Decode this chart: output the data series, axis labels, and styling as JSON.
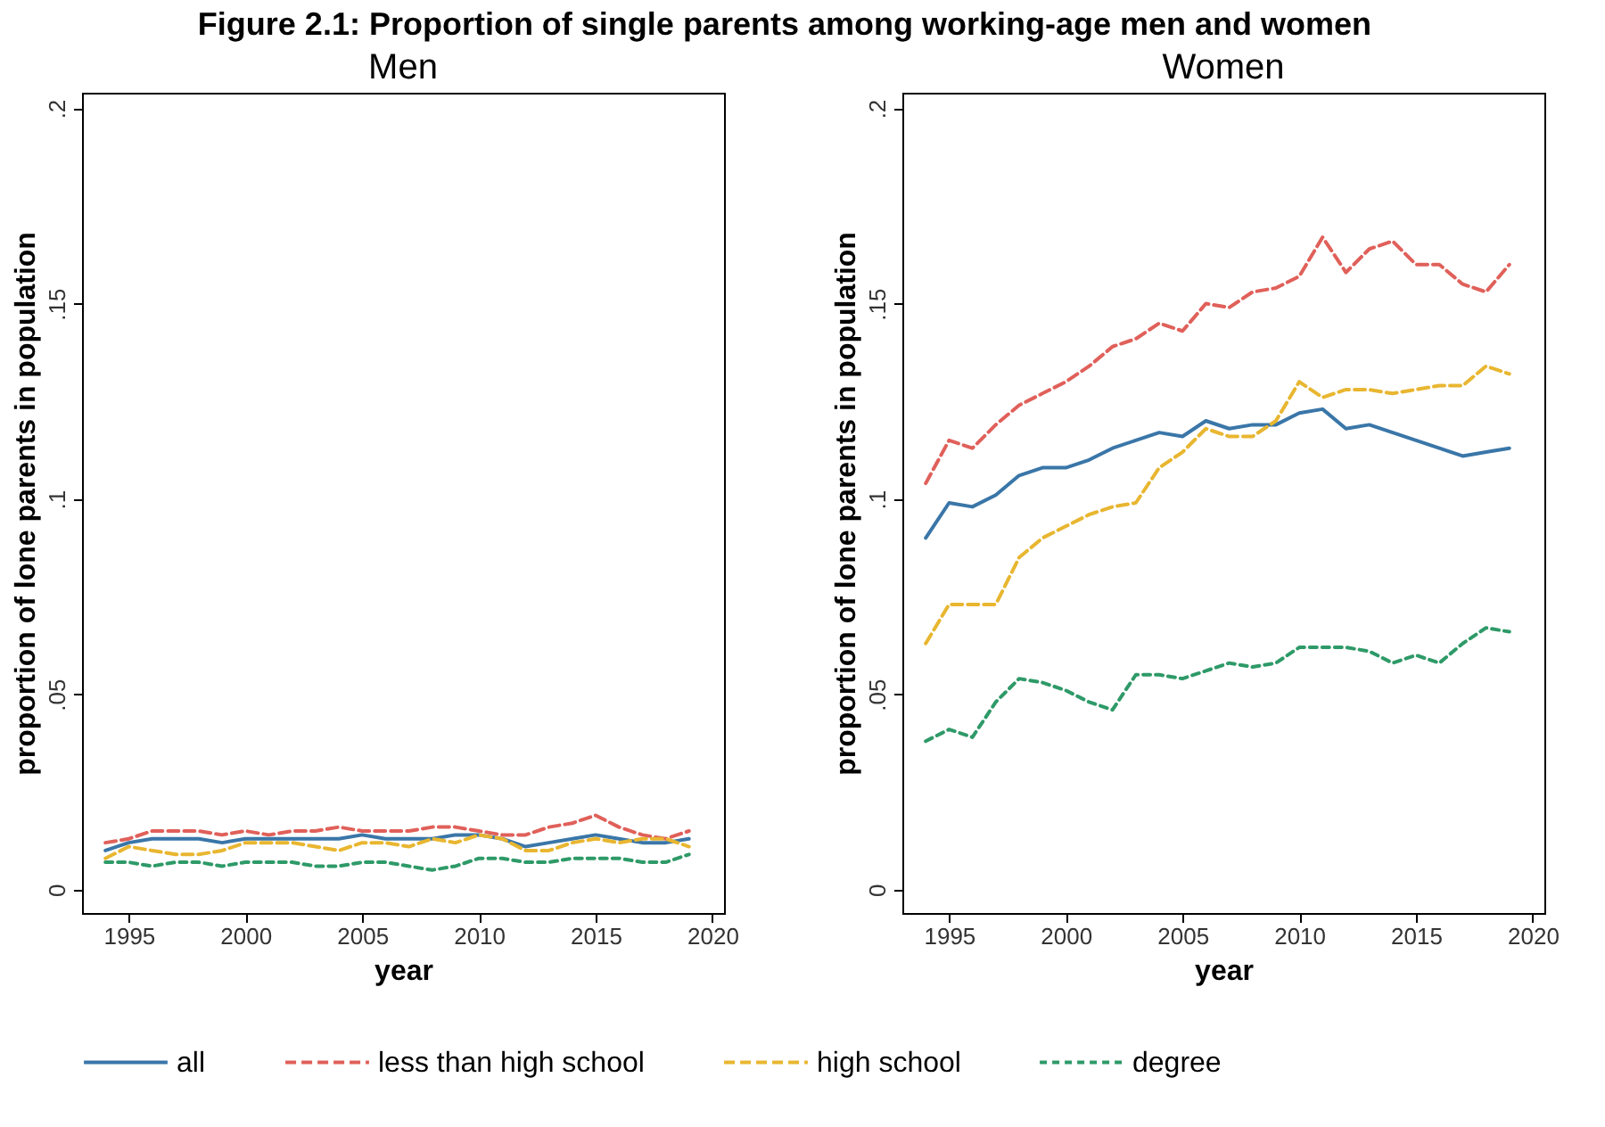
{
  "chart_data": [
    {
      "type": "line",
      "title": "Men",
      "xlabel": "year",
      "ylabel": "proportion of lone parents in population",
      "annotations": [
        "Figure 2.1: Proportion of single parents among working-age men and women"
      ],
      "x": [
        1994,
        1995,
        1996,
        1997,
        1998,
        1999,
        2000,
        2001,
        2002,
        2003,
        2004,
        2005,
        2006,
        2007,
        2008,
        2009,
        2010,
        2011,
        2012,
        2013,
        2014,
        2015,
        2016,
        2017,
        2018,
        2019
      ],
      "series": [
        {
          "name": "all",
          "color": "#3a76a8",
          "line_style": "solid",
          "values": [
            0.01,
            0.012,
            0.013,
            0.013,
            0.013,
            0.012,
            0.013,
            0.013,
            0.013,
            0.013,
            0.013,
            0.014,
            0.013,
            0.013,
            0.013,
            0.014,
            0.014,
            0.013,
            0.011,
            0.012,
            0.013,
            0.014,
            0.013,
            0.012,
            0.012,
            0.013
          ]
        },
        {
          "name": "less than high school",
          "color": "#e0605a",
          "line_style": "dashed",
          "values": [
            0.012,
            0.013,
            0.015,
            0.015,
            0.015,
            0.014,
            0.015,
            0.014,
            0.015,
            0.015,
            0.016,
            0.015,
            0.015,
            0.015,
            0.016,
            0.016,
            0.015,
            0.014,
            0.014,
            0.016,
            0.017,
            0.019,
            0.016,
            0.014,
            0.013,
            0.015
          ]
        },
        {
          "name": "high school",
          "color": "#e8b630",
          "line_style": "dashed",
          "values": [
            0.008,
            0.011,
            0.01,
            0.009,
            0.009,
            0.01,
            0.012,
            0.012,
            0.012,
            0.011,
            0.01,
            0.012,
            0.012,
            0.011,
            0.013,
            0.012,
            0.014,
            0.013,
            0.01,
            0.01,
            0.012,
            0.013,
            0.012,
            0.013,
            0.013,
            0.011
          ]
        },
        {
          "name": "degree",
          "color": "#2e9a68",
          "line_style": "dotted",
          "values": [
            0.007,
            0.007,
            0.006,
            0.007,
            0.007,
            0.006,
            0.007,
            0.007,
            0.007,
            0.006,
            0.006,
            0.007,
            0.007,
            0.006,
            0.005,
            0.006,
            0.008,
            0.008,
            0.007,
            0.007,
            0.008,
            0.008,
            0.008,
            0.007,
            0.007,
            0.009
          ]
        }
      ],
      "xlim": [
        1993,
        2020.5
      ],
      "xticks": [
        1995,
        2000,
        2005,
        2010,
        2015,
        2020
      ],
      "ylim": [
        -0.006,
        0.204
      ],
      "yticks": [
        {
          "value": 0,
          "label": "0"
        },
        {
          "value": 0.05,
          "label": ".05"
        },
        {
          "value": 0.1,
          "label": ".1"
        },
        {
          "value": 0.15,
          "label": ".15"
        },
        {
          "value": 0.2,
          "label": ".2"
        }
      ],
      "grid": false,
      "legend": "bottom"
    },
    {
      "type": "line",
      "title": "Women",
      "xlabel": "year",
      "ylabel": "proportion of lone parents in population",
      "x": [
        1994,
        1995,
        1996,
        1997,
        1998,
        1999,
        2000,
        2001,
        2002,
        2003,
        2004,
        2005,
        2006,
        2007,
        2008,
        2009,
        2010,
        2011,
        2012,
        2013,
        2014,
        2015,
        2016,
        2017,
        2018,
        2019
      ],
      "series": [
        {
          "name": "all",
          "color": "#3a76a8",
          "line_style": "solid",
          "values": [
            0.09,
            0.099,
            0.098,
            0.101,
            0.106,
            0.108,
            0.108,
            0.11,
            0.113,
            0.115,
            0.117,
            0.116,
            0.12,
            0.118,
            0.119,
            0.119,
            0.122,
            0.123,
            0.118,
            0.119,
            0.117,
            0.115,
            0.113,
            0.111,
            0.112,
            0.113
          ]
        },
        {
          "name": "less than high school",
          "color": "#e0605a",
          "line_style": "dashed",
          "values": [
            0.104,
            0.115,
            0.113,
            0.119,
            0.124,
            0.127,
            0.13,
            0.134,
            0.139,
            0.141,
            0.145,
            0.143,
            0.15,
            0.149,
            0.153,
            0.154,
            0.157,
            0.167,
            0.158,
            0.164,
            0.166,
            0.16,
            0.16,
            0.155,
            0.153,
            0.16
          ]
        },
        {
          "name": "high school",
          "color": "#e8b630",
          "line_style": "dashed",
          "values": [
            0.063,
            0.073,
            0.073,
            0.073,
            0.085,
            0.09,
            0.093,
            0.096,
            0.098,
            0.099,
            0.108,
            0.112,
            0.118,
            0.116,
            0.116,
            0.12,
            0.13,
            0.126,
            0.128,
            0.128,
            0.127,
            0.128,
            0.129,
            0.129,
            0.134,
            0.132
          ]
        },
        {
          "name": "degree",
          "color": "#2e9a68",
          "line_style": "dotted",
          "values": [
            0.038,
            0.041,
            0.039,
            0.048,
            0.054,
            0.053,
            0.051,
            0.048,
            0.046,
            0.055,
            0.055,
            0.054,
            0.056,
            0.058,
            0.057,
            0.058,
            0.062,
            0.062,
            0.062,
            0.061,
            0.058,
            0.06,
            0.058,
            0.063,
            0.067,
            0.066
          ]
        }
      ],
      "xlim": [
        1993,
        2020.5
      ],
      "xticks": [
        1995,
        2000,
        2005,
        2010,
        2015,
        2020
      ],
      "ylim": [
        -0.006,
        0.204
      ],
      "yticks": [
        {
          "value": 0,
          "label": "0"
        },
        {
          "value": 0.05,
          "label": ".05"
        },
        {
          "value": 0.1,
          "label": ".1"
        },
        {
          "value": 0.15,
          "label": ".15"
        },
        {
          "value": 0.2,
          "label": ".2"
        }
      ],
      "grid": false,
      "legend": "bottom"
    }
  ]
}
